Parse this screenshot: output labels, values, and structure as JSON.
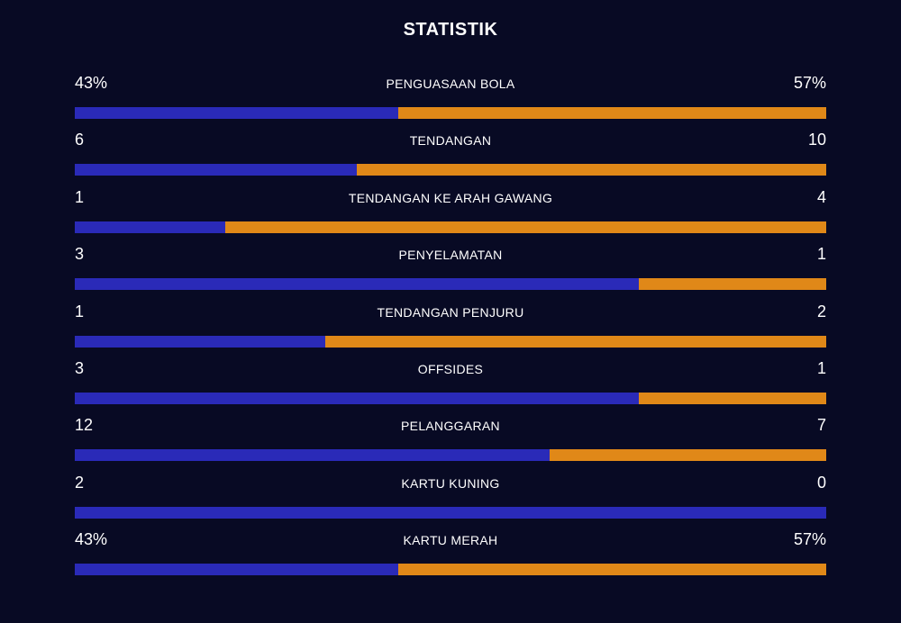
{
  "title": "STATISTIK",
  "colors": {
    "background": "#080a24",
    "home": "#2a2ab8",
    "away": "#e08818",
    "text": "#ffffff"
  },
  "stats": [
    {
      "label": "PENGUASAAN BOLA",
      "home": "43%",
      "away": "57%",
      "home_share": 0.43
    },
    {
      "label": "TENDANGAN",
      "home": "6",
      "away": "10",
      "home_share": 0.375
    },
    {
      "label": "TENDANGAN KE ARAH GAWANG",
      "home": "1",
      "away": "4",
      "home_share": 0.2
    },
    {
      "label": "PENYELAMATAN",
      "home": "3",
      "away": "1",
      "home_share": 0.75
    },
    {
      "label": "TENDANGAN PENJURU",
      "home": "1",
      "away": "2",
      "home_share": 0.333
    },
    {
      "label": "OFFSIDES",
      "home": "3",
      "away": "1",
      "home_share": 0.75
    },
    {
      "label": "PELANGGARAN",
      "home": "12",
      "away": "7",
      "home_share": 0.632
    },
    {
      "label": "KARTU KUNING",
      "home": "2",
      "away": "0",
      "home_share": 1.0
    },
    {
      "label": "KARTU MERAH",
      "home": "43%",
      "away": "57%",
      "home_share": 0.43
    }
  ]
}
